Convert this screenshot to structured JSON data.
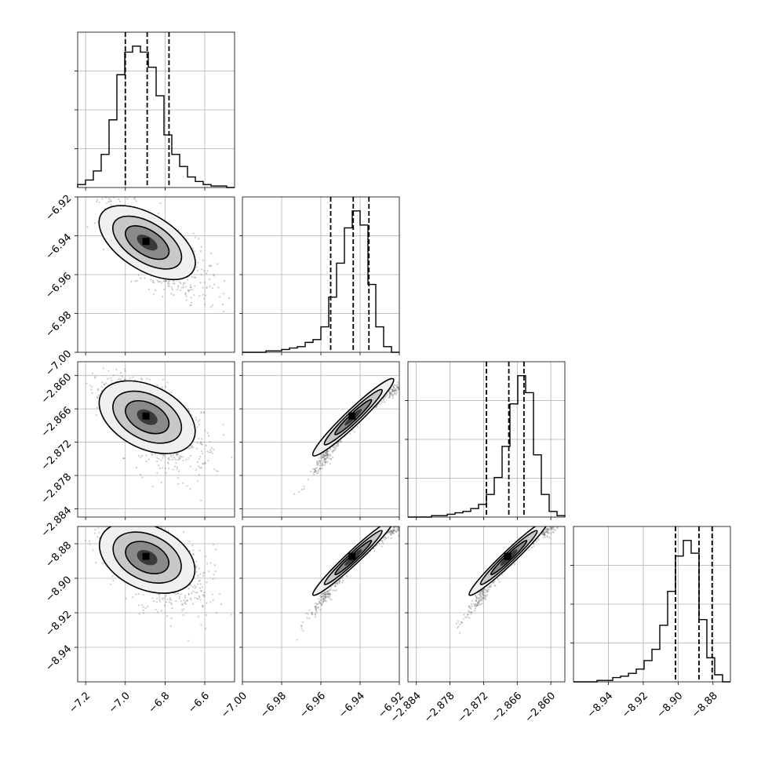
{
  "chart_data": {
    "type": "corner",
    "figure": "corner plot of posterior samples for four parameters",
    "grid": true,
    "parameters": [
      {
        "index": 0,
        "range": [
          -7.24,
          -6.45
        ],
        "ticks": [
          -7.2,
          -7.0,
          -6.8,
          -6.6
        ],
        "tick_labels": [
          "−7.2",
          "−7.0",
          "−6.8",
          "−6.6"
        ],
        "quantiles": [
          -7.0,
          -6.89,
          -6.78
        ]
      },
      {
        "index": 1,
        "range": [
          -7.0,
          -6.92
        ],
        "ticks": [
          -7.0,
          -6.98,
          -6.96,
          -6.94,
          -6.92
        ],
        "tick_labels": [
          "−7.00",
          "−6.98",
          "−6.96",
          "−6.94",
          "−6.92"
        ],
        "quantiles": [
          -6.955,
          -6.9435,
          -6.9355
        ]
      },
      {
        "index": 2,
        "range": [
          -2.8855,
          -2.8575
        ],
        "ticks": [
          -2.884,
          -2.878,
          -2.872,
          -2.866,
          -2.86
        ],
        "tick_labels": [
          "−2.884",
          "−2.878",
          "−2.872",
          "−2.866",
          "−2.860"
        ],
        "quantiles": [
          -2.8715,
          -2.8675,
          -2.8648
        ]
      },
      {
        "index": 3,
        "range": [
          -8.96,
          -8.87
        ],
        "ticks": [
          -8.94,
          -8.92,
          -8.9,
          -8.88
        ],
        "tick_labels": [
          "−8.94",
          "−8.92",
          "−8.90",
          "−8.88"
        ],
        "quantiles": [
          -8.9015,
          -8.888,
          -8.8805
        ]
      }
    ],
    "histograms": [
      {
        "param": 0,
        "counts": [
          2,
          5,
          11,
          22,
          45,
          75,
          90,
          94,
          90,
          80,
          61,
          35,
          22,
          14,
          7,
          4,
          2,
          1,
          1,
          0
        ]
      },
      {
        "param": 1,
        "counts": [
          0,
          0,
          0,
          1,
          1,
          2,
          3,
          4,
          7,
          9,
          18,
          39,
          63,
          88,
          100,
          90,
          48,
          18,
          4,
          0
        ]
      },
      {
        "param": 2,
        "counts": [
          0,
          0,
          0,
          1,
          1,
          2,
          3,
          4,
          6,
          9,
          16,
          28,
          50,
          80,
          100,
          88,
          44,
          16,
          4,
          1
        ]
      },
      {
        "param": 3,
        "counts": [
          0,
          0,
          0,
          1,
          1,
          3,
          4,
          6,
          9,
          15,
          23,
          40,
          64,
          89,
          100,
          91,
          44,
          17,
          5,
          0
        ]
      }
    ],
    "pairs": [
      {
        "x": 0,
        "y": 1,
        "correlation": -0.72
      },
      {
        "x": 0,
        "y": 2,
        "correlation": -0.6
      },
      {
        "x": 0,
        "y": 3,
        "correlation": -0.55
      },
      {
        "x": 1,
        "y": 2,
        "correlation": 0.98
      },
      {
        "x": 1,
        "y": 3,
        "correlation": 0.985
      },
      {
        "x": 2,
        "y": 3,
        "correlation": 0.985
      }
    ]
  }
}
